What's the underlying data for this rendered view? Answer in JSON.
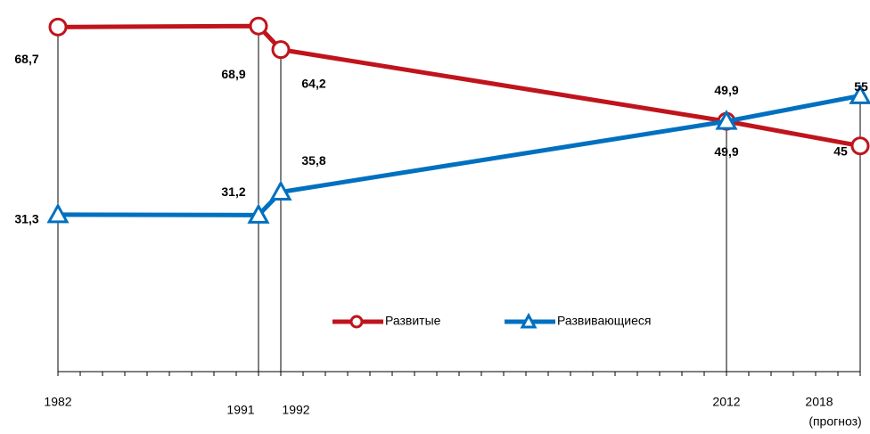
{
  "chart_data": {
    "type": "line",
    "x": [
      1982,
      1991,
      1992,
      2012,
      2018
    ],
    "xlim": [
      1982,
      2018
    ],
    "xticks": [
      1982,
      1991,
      1992,
      2012,
      2018
    ],
    "ylim": [
      0,
      70
    ],
    "annotation": "(прогноз)",
    "legend": "bottom-center",
    "series": [
      {
        "name": "Развитые",
        "color": "#c0141c",
        "marker": "circle",
        "values": [
          68.7,
          68.9,
          64.2,
          49.9,
          45
        ],
        "value_labels": [
          "68,7",
          "68,9",
          "64,2",
          "49,9",
          "45"
        ]
      },
      {
        "name": "Развивающиеся",
        "color": "#0070c0",
        "marker": "triangle",
        "values": [
          31.3,
          31.2,
          35.8,
          49.9,
          55
        ],
        "value_labels": [
          "31,3",
          "31,2",
          "35,8",
          "49,9",
          "55"
        ]
      }
    ]
  }
}
